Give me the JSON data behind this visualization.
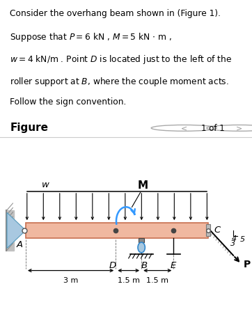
{
  "bg_color": "#dff0f7",
  "beam_color": "#f0b8a0",
  "beam_edge_color": "#c87050",
  "wall_fill": "#c8c8a0",
  "pin_support_color": "#a8c8e0",
  "moment_color": "#3399ff",
  "fig_width": 3.62,
  "fig_height": 4.52,
  "text_lines": [
    "Consider the overhang beam shown in (Figure 1).",
    "Suppose that $P = 6$ kN , $M = 5$ kN $\\cdot$ m ,",
    "$w = 4$ kN/m . Point $D$ is located just to the left of the",
    "roller support at $B$, where the couple moment acts.",
    "Follow the sign convention."
  ]
}
